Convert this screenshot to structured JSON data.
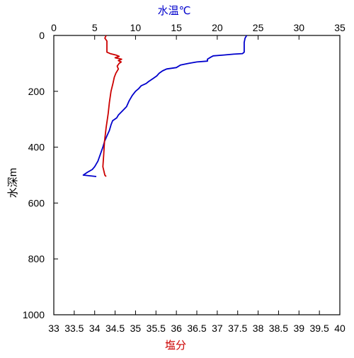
{
  "chart_data": {
    "type": "line",
    "top_axis": {
      "label": "水温℃",
      "range": [
        0,
        35
      ],
      "ticks": [
        0,
        5,
        10,
        15,
        20,
        25,
        30,
        35
      ],
      "tick_labels": [
        "0",
        "5",
        "10",
        "15",
        "20",
        "25",
        "30",
        "35"
      ],
      "color": "#0000cc"
    },
    "bottom_axis": {
      "label": "塩分",
      "range": [
        33,
        40
      ],
      "ticks": [
        33,
        33.5,
        34,
        34.5,
        35,
        35.5,
        36,
        36.5,
        37,
        37.5,
        38,
        38.5,
        39,
        39.5,
        40
      ],
      "tick_labels": [
        "33",
        "33.5",
        "34",
        "34.5",
        "35",
        "35.5",
        "36",
        "36.5",
        "37",
        "37.5",
        "38",
        "38.5",
        "39",
        "39.5",
        "40"
      ],
      "color": "#cc0000"
    },
    "y_axis": {
      "label": "水深m",
      "range": [
        0,
        1000
      ],
      "inverted": true,
      "ticks": [
        0,
        200,
        400,
        600,
        800,
        1000
      ],
      "tick_labels": [
        "0",
        "200",
        "400",
        "600",
        "800",
        "1000"
      ]
    },
    "grid": false,
    "series": [
      {
        "axis": "top",
        "color": "#0000cc",
        "points": [
          [
            23.6,
            0
          ],
          [
            23.4,
            10
          ],
          [
            23.3,
            25
          ],
          [
            23.3,
            45
          ],
          [
            23.3,
            60
          ],
          [
            23.1,
            65
          ],
          [
            22.0,
            67
          ],
          [
            20.8,
            70
          ],
          [
            19.5,
            73
          ],
          [
            19.2,
            78
          ],
          [
            18.8,
            85
          ],
          [
            18.8,
            92
          ],
          [
            17.5,
            95
          ],
          [
            16.5,
            100
          ],
          [
            15.5,
            106
          ],
          [
            15.0,
            115
          ],
          [
            13.8,
            120
          ],
          [
            13.3,
            127
          ],
          [
            12.9,
            135
          ],
          [
            12.6,
            145
          ],
          [
            12.1,
            155
          ],
          [
            11.6,
            165
          ],
          [
            11.3,
            172
          ],
          [
            10.7,
            180
          ],
          [
            10.4,
            190
          ],
          [
            10.0,
            200
          ],
          [
            9.6,
            215
          ],
          [
            9.2,
            235
          ],
          [
            8.9,
            255
          ],
          [
            8.4,
            270
          ],
          [
            7.9,
            285
          ],
          [
            7.7,
            295
          ],
          [
            7.2,
            305
          ],
          [
            7.0,
            320
          ],
          [
            6.8,
            340
          ],
          [
            6.5,
            360
          ],
          [
            6.2,
            380
          ],
          [
            6.0,
            400
          ],
          [
            5.7,
            425
          ],
          [
            5.4,
            450
          ],
          [
            5.0,
            470
          ],
          [
            4.7,
            480
          ],
          [
            4.1,
            490
          ],
          [
            3.6,
            500
          ],
          [
            5.2,
            505
          ]
        ]
      },
      {
        "axis": "bottom",
        "color": "#cc0000",
        "points": [
          [
            34.28,
            0
          ],
          [
            34.25,
            10
          ],
          [
            34.3,
            20
          ],
          [
            34.3,
            40
          ],
          [
            34.3,
            60
          ],
          [
            34.38,
            65
          ],
          [
            34.52,
            70
          ],
          [
            34.6,
            75
          ],
          [
            34.5,
            80
          ],
          [
            34.66,
            85
          ],
          [
            34.58,
            90
          ],
          [
            34.65,
            95
          ],
          [
            34.6,
            100
          ],
          [
            34.55,
            110
          ],
          [
            34.58,
            120
          ],
          [
            34.52,
            135
          ],
          [
            34.48,
            150
          ],
          [
            34.45,
            170
          ],
          [
            34.4,
            200
          ],
          [
            34.36,
            240
          ],
          [
            34.33,
            280
          ],
          [
            34.28,
            330
          ],
          [
            34.24,
            380
          ],
          [
            34.22,
            430
          ],
          [
            34.2,
            470
          ],
          [
            34.25,
            500
          ],
          [
            34.28,
            505
          ]
        ]
      }
    ]
  }
}
